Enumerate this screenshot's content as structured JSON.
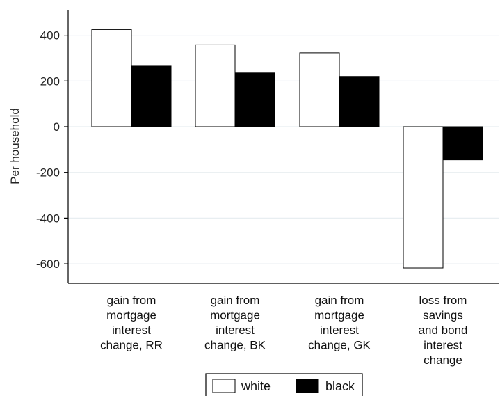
{
  "chart_data": {
    "type": "bar",
    "ylabel": "Per household",
    "ylim": [
      -680,
      520
    ],
    "yticks": [
      400,
      200,
      0,
      -200,
      -400,
      -600
    ],
    "ytick_labels": [
      "400",
      "200",
      "0",
      "-200",
      "-400",
      "-600"
    ],
    "categories": [
      [
        "gain from",
        "mortgage",
        "interest",
        "change, RR"
      ],
      [
        "gain from",
        "mortgage",
        "interest",
        "change, BK"
      ],
      [
        "gain from",
        "mortgage",
        "interest",
        "change, GK"
      ],
      [
        "loss from",
        "savings",
        "and bond",
        "interest",
        "change"
      ]
    ],
    "series": [
      {
        "name": "white",
        "values": [
          425,
          358,
          323,
          -618
        ],
        "color": "#ffffff"
      },
      {
        "name": "black",
        "values": [
          265,
          235,
          220,
          -145
        ],
        "color": "#000000"
      }
    ],
    "grid": "horizontal",
    "legend_position": "bottom"
  }
}
